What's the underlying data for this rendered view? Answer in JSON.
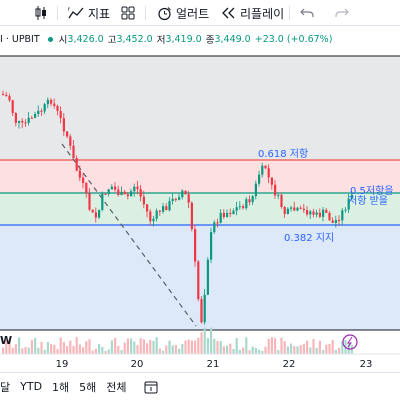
{
  "toolbar": {
    "indicators_label": "지표",
    "alerts_label": "얼러트",
    "replay_label": "리플레이"
  },
  "legend": {
    "symbol_suffix": "I · UPBIT",
    "open_label": "시",
    "open_value": "3,426.0",
    "high_label": "고",
    "high_value": "3,452.0",
    "low_label": "저",
    "low_value": "3,419.0",
    "close_label": "종",
    "close_value": "3,449.0",
    "change": "+23.0 (+0.67%)"
  },
  "chart": {
    "fib_618_label": "0.618 저항",
    "fib_5_label_line1": "0.5저항을",
    "fib_5_label_line2": "저항 받을",
    "fib_382_label": "0.382 지지",
    "date_ticks": [
      "19",
      "20",
      "21",
      "22",
      "23"
    ],
    "watermark": "W",
    "colors": {
      "resistance": "#ef5350",
      "support": "#2962ff",
      "neutral_line": "#089981",
      "up": "#089981",
      "down": "#f23645"
    }
  },
  "bottombar": {
    "items": [
      "달",
      "YTD",
      "1해",
      "5해",
      "전체"
    ]
  }
}
